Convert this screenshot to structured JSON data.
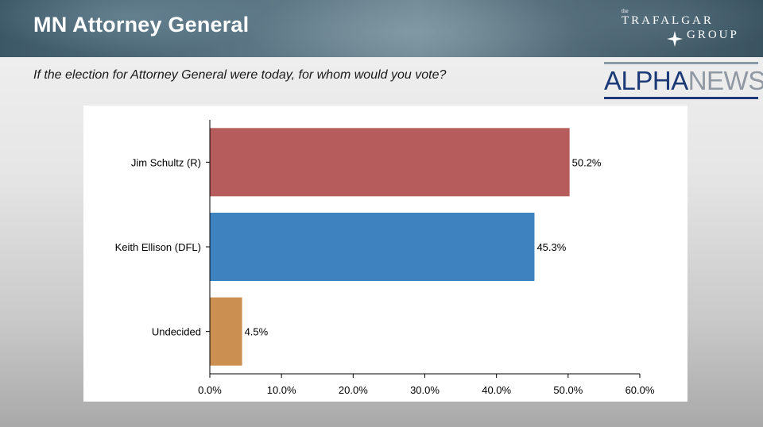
{
  "header": {
    "title": "MN Attorney General",
    "brand_small": "the",
    "brand_line1": "TRAFALGAR",
    "brand_line2": "GROUP"
  },
  "question": "If the election for Attorney General were today, for whom would you vote?",
  "alphanews": {
    "part1": "ALPHA",
    "part2": "NEWS"
  },
  "chart_data": {
    "type": "bar",
    "orientation": "horizontal",
    "categories": [
      "Jim Schultz (R)",
      "Keith Ellison (DFL)",
      "Undecided"
    ],
    "values": [
      50.2,
      45.3,
      4.5
    ],
    "value_labels": [
      "50.2%",
      "45.3%",
      "4.5%"
    ],
    "colors": [
      "#b65c5c",
      "#3f82c0",
      "#cc8f52"
    ],
    "xlim": [
      0,
      60
    ],
    "ticks": [
      0,
      10,
      20,
      30,
      40,
      50,
      60
    ],
    "tick_labels": [
      "0.0%",
      "10.0%",
      "20.0%",
      "30.0%",
      "40.0%",
      "50.0%",
      "60.0%"
    ],
    "grid": false,
    "legend": "none"
  }
}
